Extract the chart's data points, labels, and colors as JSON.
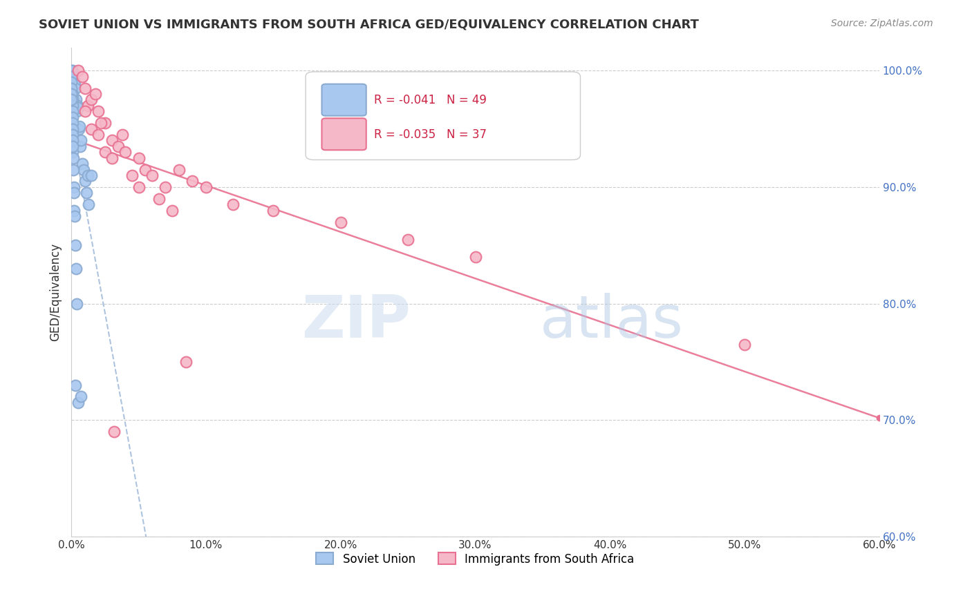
{
  "title": "SOVIET UNION VS IMMIGRANTS FROM SOUTH AFRICA GED/EQUIVALENCY CORRELATION CHART",
  "source": "Source: ZipAtlas.com",
  "xlabel": "",
  "ylabel": "GED/Equivalency",
  "xlim": [
    0.0,
    60.0
  ],
  "ylim": [
    60.0,
    102.0
  ],
  "xtick_labels": [
    "0.0%",
    "10.0%",
    "20.0%",
    "30.0%",
    "40.0%",
    "50.0%",
    "60.0%"
  ],
  "xtick_values": [
    0,
    10,
    20,
    30,
    40,
    50,
    60
  ],
  "ytick_labels": [
    "60.0%",
    "70.0%",
    "80.0%",
    "90.0%",
    "100.0%"
  ],
  "ytick_values": [
    60,
    70,
    80,
    90,
    100
  ],
  "legend_label1": "Soviet Union",
  "legend_label2": "Immigrants from South Africa",
  "R1": "-0.041",
  "N1": "49",
  "R2": "-0.035",
  "N2": "37",
  "color1": "#a8c8f0",
  "color2": "#f5b8c8",
  "trendline1_color": "#8aaad0",
  "trendline2_color": "#e87090",
  "soviet_x": [
    0.1,
    0.15,
    0.2,
    0.25,
    0.3,
    0.35,
    0.4,
    0.45,
    0.5,
    0.55,
    0.6,
    0.65,
    0.7,
    0.8,
    0.9,
    1.0,
    1.1,
    1.2,
    1.3,
    1.5,
    0.1,
    0.1,
    0.1,
    0.1,
    0.1,
    0.1,
    0.1,
    0.1,
    0.1,
    0.1,
    0.1,
    0.15,
    0.15,
    0.2,
    0.2,
    0.2,
    0.25,
    0.3,
    0.35,
    0.4,
    0.0,
    0.0,
    0.0,
    0.0,
    0.0,
    0.0,
    0.5,
    0.7,
    0.3
  ],
  "soviet_y": [
    100,
    99.5,
    99.2,
    98.8,
    98.5,
    97.5,
    96.5,
    97.0,
    96.8,
    95.0,
    95.2,
    93.5,
    94.0,
    92.0,
    91.5,
    90.5,
    89.5,
    91.0,
    88.5,
    91.0,
    98.0,
    97.5,
    97.0,
    96.5,
    96.0,
    95.5,
    95.0,
    94.5,
    94.0,
    93.0,
    93.5,
    92.5,
    91.5,
    90.0,
    89.5,
    88.0,
    87.5,
    85.0,
    83.0,
    80.0,
    100.0,
    99.5,
    99.0,
    98.5,
    98.0,
    97.5,
    71.5,
    72.0,
    73.0
  ],
  "sa_x": [
    0.5,
    0.8,
    1.0,
    1.2,
    1.5,
    2.0,
    2.5,
    3.0,
    3.5,
    4.0,
    5.0,
    5.5,
    6.0,
    7.0,
    8.0,
    9.0,
    10.0,
    12.0,
    15.0,
    20.0,
    25.0,
    30.0,
    1.0,
    1.5,
    2.0,
    2.5,
    3.0,
    4.5,
    5.0,
    6.5,
    7.5,
    8.5,
    1.8,
    2.2,
    3.8,
    50.0,
    3.2
  ],
  "sa_y": [
    100.0,
    99.5,
    98.5,
    97.0,
    97.5,
    96.5,
    95.5,
    94.0,
    93.5,
    93.0,
    92.5,
    91.5,
    91.0,
    90.0,
    91.5,
    90.5,
    90.0,
    88.5,
    88.0,
    87.0,
    85.5,
    84.0,
    96.5,
    95.0,
    94.5,
    93.0,
    92.5,
    91.0,
    90.0,
    89.0,
    88.0,
    75.0,
    98.0,
    95.5,
    94.5,
    76.5,
    69.0
  ]
}
